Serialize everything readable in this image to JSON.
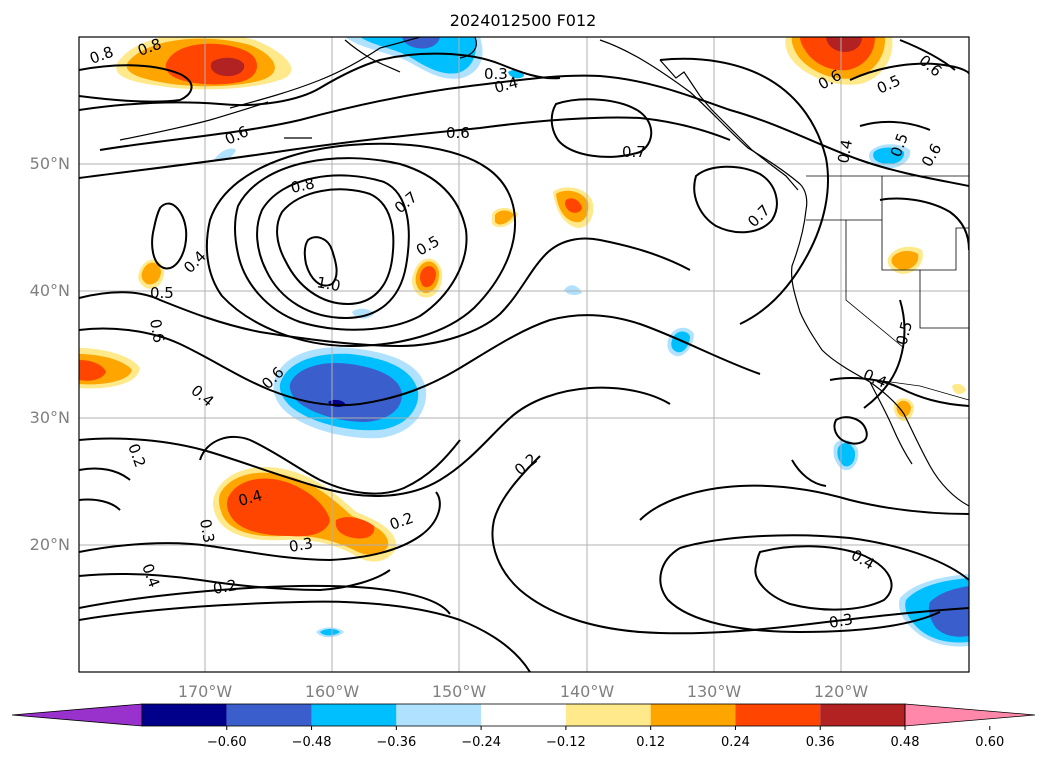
{
  "title": "2024012500 F012",
  "map": {
    "lon_range": [
      -180,
      -110
    ],
    "lat_range": [
      10,
      60
    ],
    "gridlines": true,
    "grid_lons": [
      -170,
      -160,
      -150,
      -140,
      -130,
      -120
    ],
    "grid_lats": [
      20,
      30,
      40,
      50
    ],
    "lon_labels": [
      "170°W",
      "160°W",
      "150°W",
      "140°W",
      "130°W",
      "120°W"
    ],
    "lat_labels": [
      "20°N",
      "30°N",
      "40°N",
      "50°N"
    ],
    "label_color": "#808080",
    "grid_color": "#b0b0b0"
  },
  "contour_labels": [
    "0.8",
    "0.7",
    "0.6",
    "0.5",
    "0.4",
    "0.3",
    "0.2",
    "1.0"
  ],
  "colorbar": {
    "orientation": "horizontal",
    "extend": "both",
    "ticks": [
      "−0.60",
      "−0.48",
      "−0.36",
      "−0.24",
      "−0.12",
      "0.12",
      "0.24",
      "0.36",
      "0.48",
      "0.60"
    ],
    "colors": [
      "#9932cc",
      "#00008b",
      "#3a5fcd",
      "#00bfff",
      "#b0e2ff",
      "#ffffff",
      "#ffe98a",
      "#ffa500",
      "#ff4500",
      "#b22222",
      "#ff88aa"
    ]
  }
}
